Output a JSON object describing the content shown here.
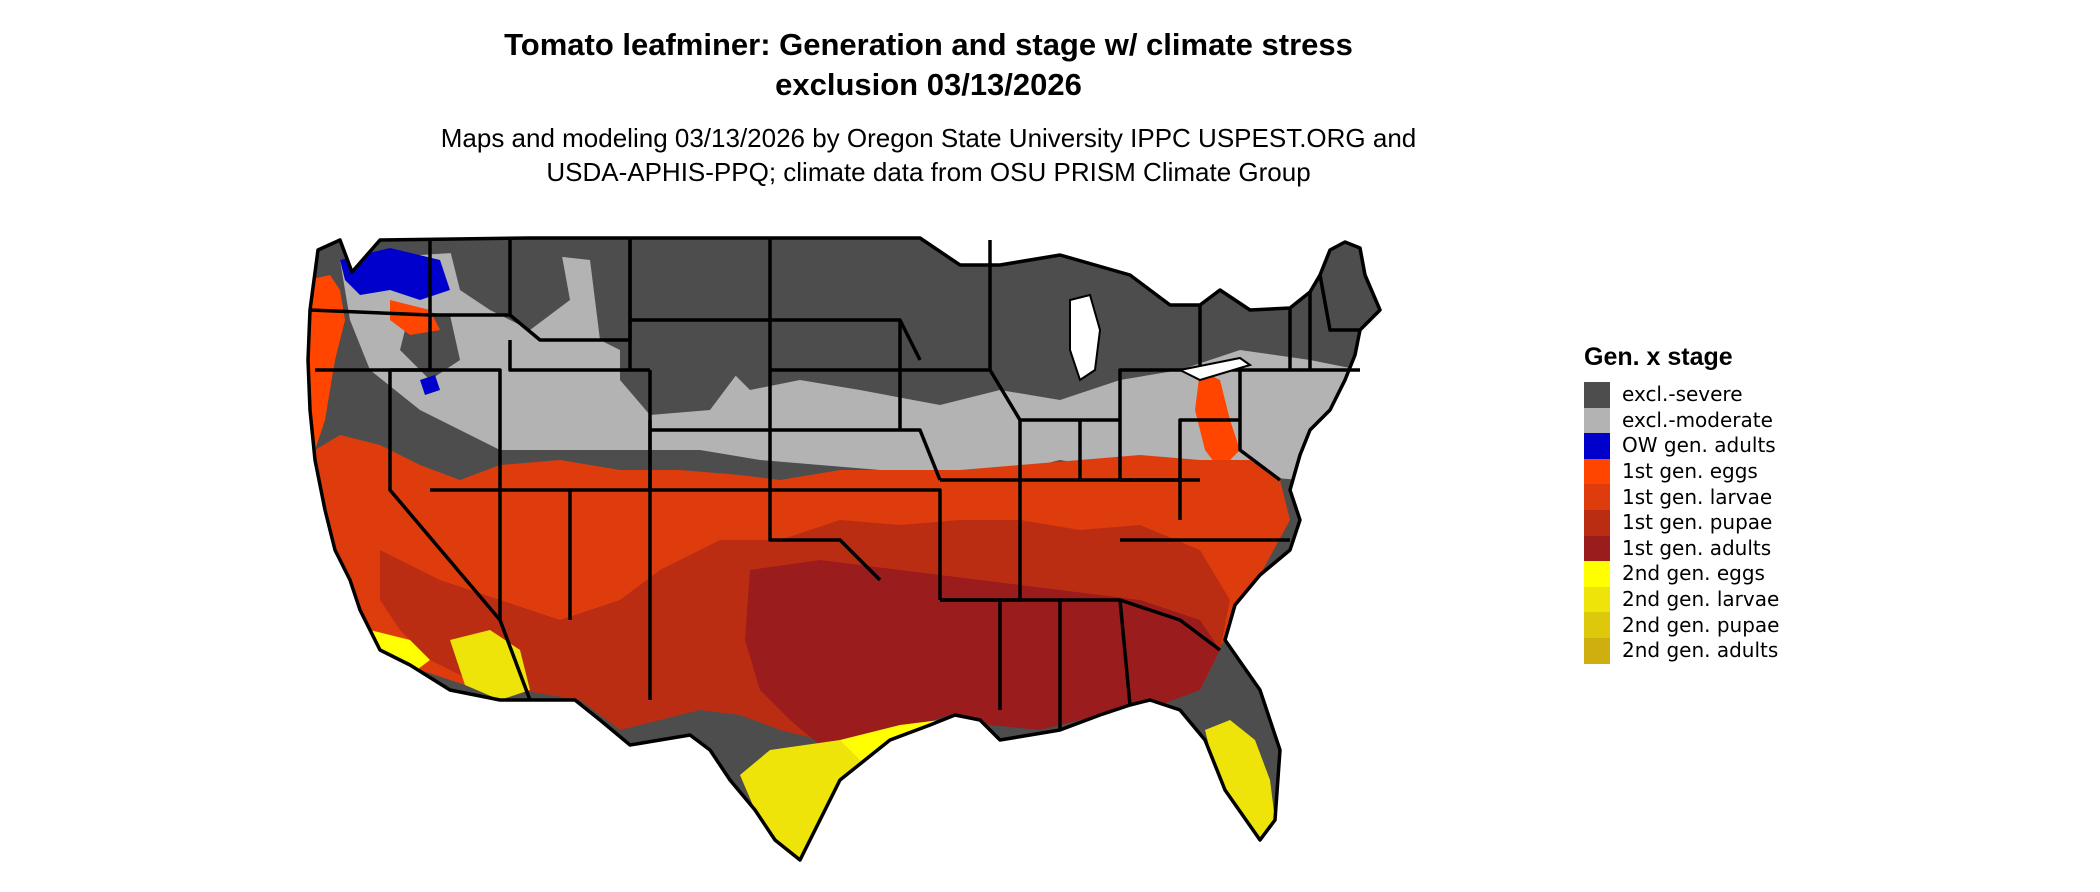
{
  "title": {
    "line1": "Tomato leafminer: Generation and stage w/ climate stress",
    "line2": "exclusion 03/13/2026"
  },
  "subtitle": {
    "line1": "Maps and modeling 03/13/2026 by Oregon State University IPPC USPEST.ORG and",
    "line2": "USDA-APHIS-PPQ; climate data from OSU PRISM Climate Group"
  },
  "legend": {
    "title": "Gen. x stage",
    "items": [
      {
        "label": "excl.-severe",
        "color": "#4d4d4d"
      },
      {
        "label": "excl.-moderate",
        "color": "#b3b3b3"
      },
      {
        "label": "OW gen. adults",
        "color": "#0000cd"
      },
      {
        "label": "1st gen. eggs",
        "color": "#ff4500"
      },
      {
        "label": "1st gen. larvae",
        "color": "#de3c0d"
      },
      {
        "label": "1st gen. pupae",
        "color": "#bb2d12"
      },
      {
        "label": "1st gen. adults",
        "color": "#9b1c1c"
      },
      {
        "label": "2nd gen. eggs",
        "color": "#ffff00"
      },
      {
        "label": "2nd gen. larvae",
        "color": "#eee40a"
      },
      {
        "label": "2nd gen. pupae",
        "color": "#ddc80c"
      },
      {
        "label": "2nd gen. adults",
        "color": "#cfae10"
      }
    ]
  },
  "map": {
    "colors": {
      "severe": "#4d4d4d",
      "moderate": "#b3b3b3",
      "ow_adults": "#0000cd",
      "g1_eggs": "#ff4500",
      "g1_larvae": "#de3c0d",
      "g1_pupae": "#bb2d12",
      "g1_adults": "#9b1c1c",
      "g2_eggs": "#ffff00",
      "g2_larvae": "#eee40a",
      "border": "#000000"
    }
  }
}
